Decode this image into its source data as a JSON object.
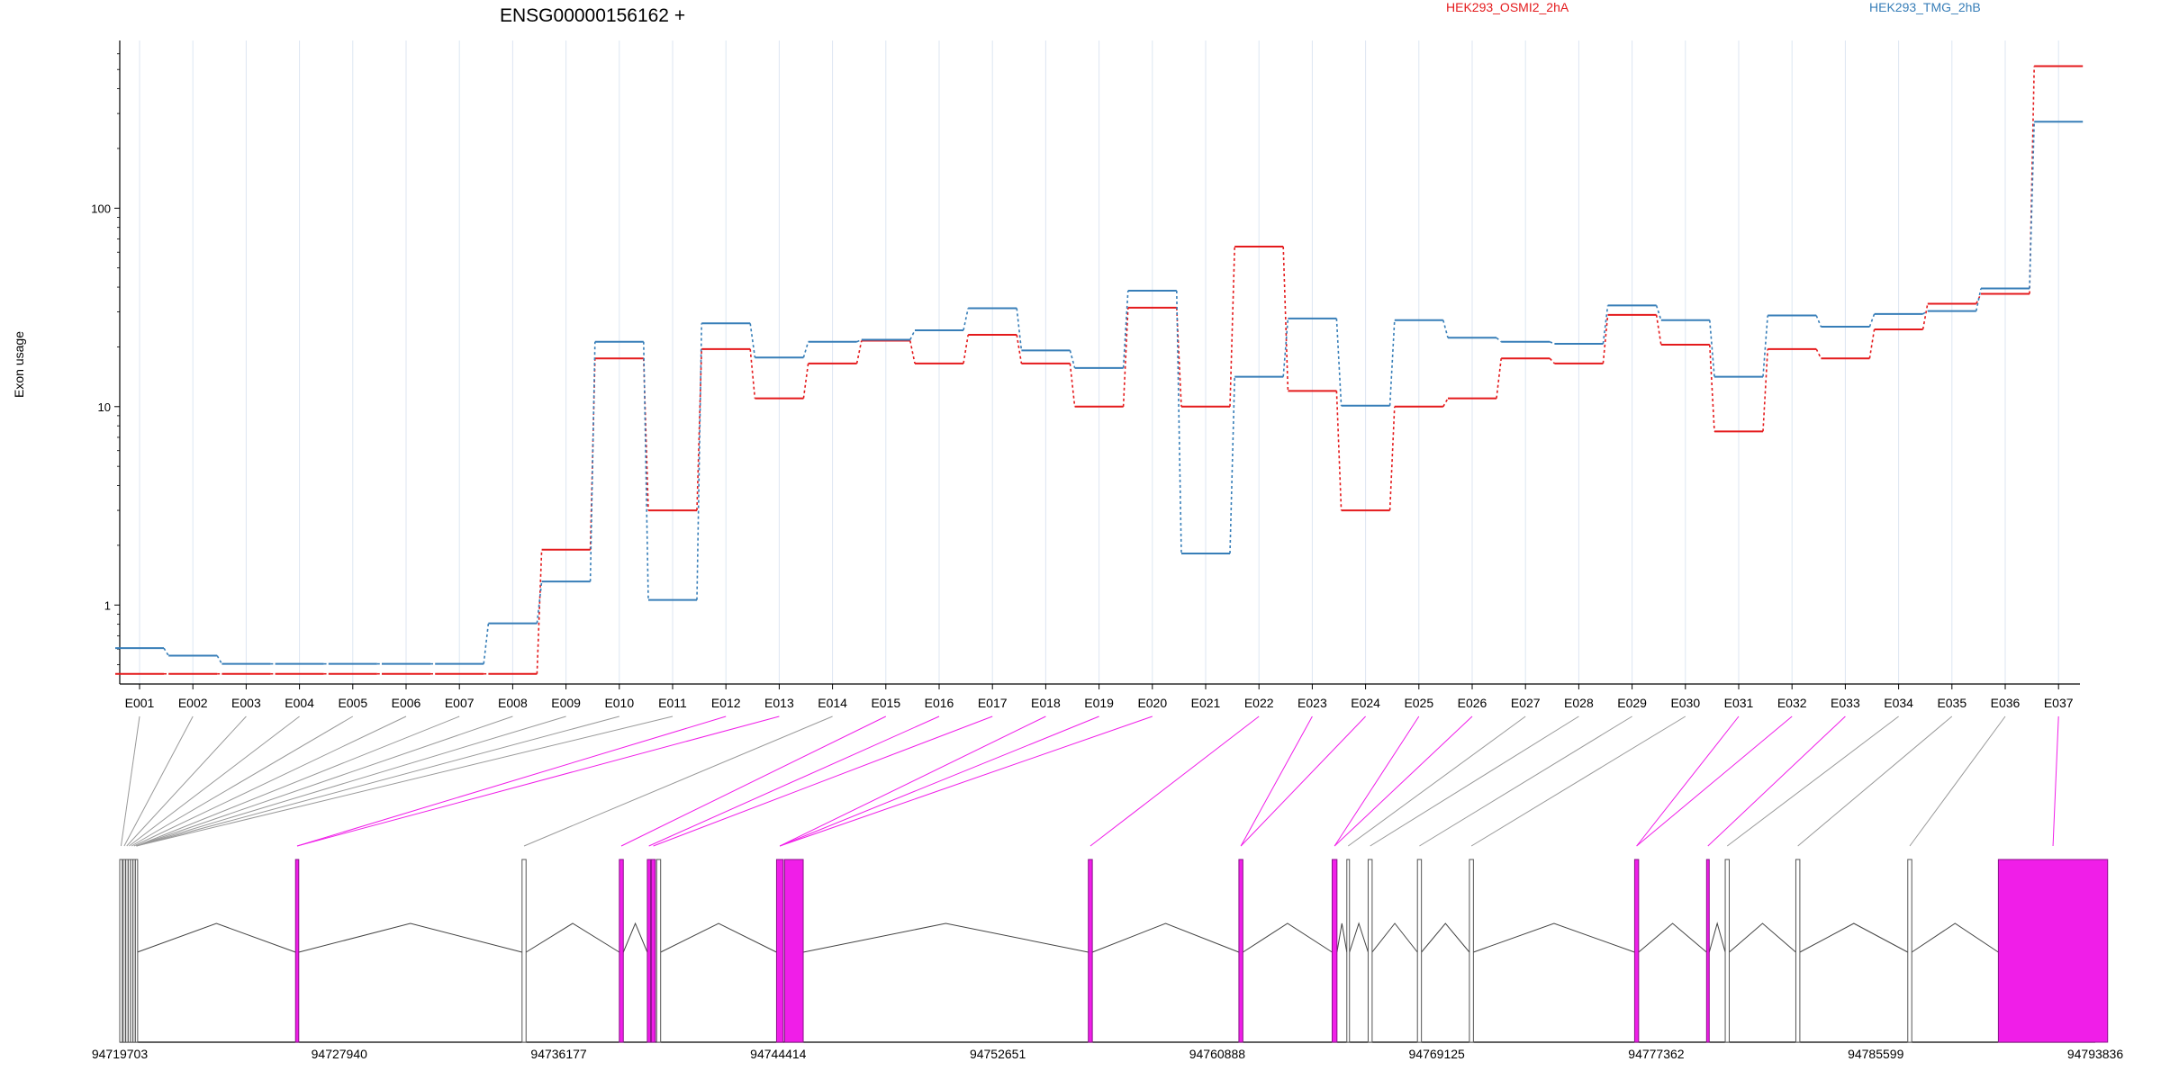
{
  "chart_data": {
    "type": "line",
    "title": "ENSG00000156162 +",
    "ylabel": "Exon usage",
    "yscale": "log",
    "ylim": [
      0.4,
      700
    ],
    "yticks": [
      1,
      10,
      100
    ],
    "grid": "vertical per exon",
    "categories": [
      "E001",
      "E002",
      "E003",
      "E004",
      "E005",
      "E006",
      "E007",
      "E008",
      "E009",
      "E010",
      "E011",
      "E012",
      "E013",
      "E014",
      "E015",
      "E016",
      "E017",
      "E018",
      "E019",
      "E020",
      "E021",
      "E022",
      "E023",
      "E024",
      "E025",
      "E026",
      "E027",
      "E028",
      "E029",
      "E030",
      "E031",
      "E032",
      "E033",
      "E034",
      "E035",
      "E036",
      "E037"
    ],
    "series": [
      {
        "name": "HEK293_OSMI2_2hA",
        "color": "#e41a1c",
        "values": [
          0.45,
          0.45,
          0.45,
          0.45,
          0.45,
          0.45,
          0.45,
          0.45,
          1.9,
          17.5,
          3.0,
          19.5,
          11.0,
          16.5,
          21.5,
          16.5,
          23.0,
          16.5,
          10.0,
          31.5,
          10.0,
          64.0,
          12.0,
          3.0,
          10.0,
          11.0,
          17.5,
          16.5,
          29.0,
          20.5,
          7.5,
          19.5,
          17.5,
          24.5,
          33.0,
          37.0,
          520.0
        ]
      },
      {
        "name": "HEK293_TMG_2hB",
        "color": "#377eb8",
        "values": [
          0.6,
          0.55,
          0.5,
          0.5,
          0.5,
          0.5,
          0.5,
          0.8,
          1.3,
          21.0,
          1.05,
          26.0,
          17.5,
          21.0,
          21.5,
          24.0,
          31.0,
          19.0,
          15.5,
          38.0,
          1.8,
          14.0,
          27.5,
          10.0,
          27.0,
          22.0,
          21.0,
          20.5,
          32.0,
          27.0,
          14.0,
          28.5,
          25.0,
          29.0,
          30.0,
          39.0,
          270.0
        ]
      }
    ],
    "gene_model": {
      "coord_labels": [
        "94719703",
        "94727940",
        "94736177",
        "94744414",
        "94752651",
        "94760888",
        "94769125",
        "94777362",
        "94785599",
        "94793836"
      ],
      "range": [
        94719703,
        94793836
      ],
      "exons": [
        {
          "id": "E001",
          "start": 94719703,
          "end": 94719800,
          "highlight": false
        },
        {
          "id": "E002",
          "start": 94719830,
          "end": 94719910,
          "highlight": false
        },
        {
          "id": "E003",
          "start": 94719930,
          "end": 94720000,
          "highlight": false
        },
        {
          "id": "E004",
          "start": 94720020,
          "end": 94720090,
          "highlight": false
        },
        {
          "id": "E005",
          "start": 94720110,
          "end": 94720180,
          "highlight": false
        },
        {
          "id": "E006",
          "start": 94720200,
          "end": 94720270,
          "highlight": false
        },
        {
          "id": "E007",
          "start": 94720290,
          "end": 94720360,
          "highlight": false
        },
        {
          "id": "E008",
          "start": 94726300,
          "end": 94726420,
          "highlight": true
        },
        {
          "id": "E009",
          "start": 94734800,
          "end": 94734950,
          "highlight": false
        },
        {
          "id": "E010",
          "start": 94738450,
          "end": 94738600,
          "highlight": true
        },
        {
          "id": "E011",
          "start": 94739500,
          "end": 94739620,
          "highlight": true
        },
        {
          "id": "E012",
          "start": 94739650,
          "end": 94739800,
          "highlight": true
        },
        {
          "id": "E013",
          "start": 94739850,
          "end": 94740000,
          "highlight": false
        },
        {
          "id": "E014",
          "start": 94744350,
          "end": 94744600,
          "highlight": true
        },
        {
          "id": "E015",
          "start": 94744650,
          "end": 94745350,
          "highlight": true
        },
        {
          "id": "E016",
          "start": 94756050,
          "end": 94756200,
          "highlight": true
        },
        {
          "id": "E017",
          "start": 94761700,
          "end": 94761850,
          "highlight": true
        },
        {
          "id": "E018",
          "start": 94765200,
          "end": 94765380,
          "highlight": true
        },
        {
          "id": "E019",
          "start": 94765750,
          "end": 94765850,
          "highlight": false
        },
        {
          "id": "E020",
          "start": 94766550,
          "end": 94766700,
          "highlight": false
        },
        {
          "id": "E021",
          "start": 94768400,
          "end": 94768550,
          "highlight": false
        },
        {
          "id": "E022",
          "start": 94770350,
          "end": 94770500,
          "highlight": false
        },
        {
          "id": "E023",
          "start": 94776550,
          "end": 94776700,
          "highlight": true
        },
        {
          "id": "E024",
          "start": 94779250,
          "end": 94779350,
          "highlight": true
        },
        {
          "id": "E025",
          "start": 94779950,
          "end": 94780100,
          "highlight": false
        },
        {
          "id": "E026",
          "start": 94782600,
          "end": 94782750,
          "highlight": false
        },
        {
          "id": "E027",
          "start": 94786800,
          "end": 94786950,
          "highlight": false
        },
        {
          "id": "E028",
          "start": 94790200,
          "end": 94794300,
          "highlight": true
        }
      ],
      "connectors": [
        {
          "exon": "E001",
          "target": "E001",
          "highlight": false
        },
        {
          "exon": "E002",
          "target": "E002",
          "highlight": false
        },
        {
          "exon": "E003",
          "target": "E003",
          "highlight": false
        },
        {
          "exon": "E004",
          "target": "E004",
          "highlight": false
        },
        {
          "exon": "E005",
          "target": "E005",
          "highlight": false
        },
        {
          "exon": "E006",
          "target": "E006",
          "highlight": false
        },
        {
          "exon": "E007",
          "target": "E007",
          "highlight": false
        },
        {
          "exon": "E008",
          "target": "E007",
          "highlight": false
        },
        {
          "exon": "E009",
          "target": "E007",
          "highlight": false
        },
        {
          "exon": "E010",
          "target": "E007",
          "highlight": false
        },
        {
          "exon": "E011",
          "target": "E007",
          "highlight": false
        },
        {
          "exon": "E012",
          "target": "E008",
          "highlight": true
        },
        {
          "exon": "E013",
          "target": "E008",
          "highlight": true
        },
        {
          "exon": "E014",
          "target": "E009",
          "highlight": false
        },
        {
          "exon": "E015",
          "target": "E010",
          "highlight": true
        },
        {
          "exon": "E016",
          "target": "E011",
          "highlight": true
        },
        {
          "exon": "E017",
          "target": "E012",
          "highlight": true
        },
        {
          "exon": "E018",
          "target": "E014",
          "highlight": true
        },
        {
          "exon": "E019",
          "target": "E014",
          "highlight": true
        },
        {
          "exon": "E020",
          "target": "E014",
          "highlight": true
        },
        {
          "exon": "E022",
          "target": "E016",
          "highlight": true
        },
        {
          "exon": "E023",
          "target": "E017",
          "highlight": true
        },
        {
          "exon": "E024",
          "target": "E017",
          "highlight": true
        },
        {
          "exon": "E025",
          "target": "E018",
          "highlight": true
        },
        {
          "exon": "E026",
          "target": "E018",
          "highlight": true
        },
        {
          "exon": "E027",
          "target": "E019",
          "highlight": false
        },
        {
          "exon": "E028",
          "target": "E020",
          "highlight": false
        },
        {
          "exon": "E029",
          "target": "E021",
          "highlight": false
        },
        {
          "exon": "E030",
          "target": "E022",
          "highlight": false
        },
        {
          "exon": "E031",
          "target": "E023",
          "highlight": true
        },
        {
          "exon": "E032",
          "target": "E023",
          "highlight": true
        },
        {
          "exon": "E033",
          "target": "E024",
          "highlight": true
        },
        {
          "exon": "E034",
          "target": "E025",
          "highlight": false
        },
        {
          "exon": "E035",
          "target": "E026",
          "highlight": false
        },
        {
          "exon": "E036",
          "target": "E027",
          "highlight": false
        },
        {
          "exon": "E037",
          "target": "E028",
          "highlight": true
        }
      ]
    },
    "colors": {
      "highlight": "#f01ee8",
      "connector_gray": "#999999",
      "grid": "#dde6f2"
    }
  }
}
